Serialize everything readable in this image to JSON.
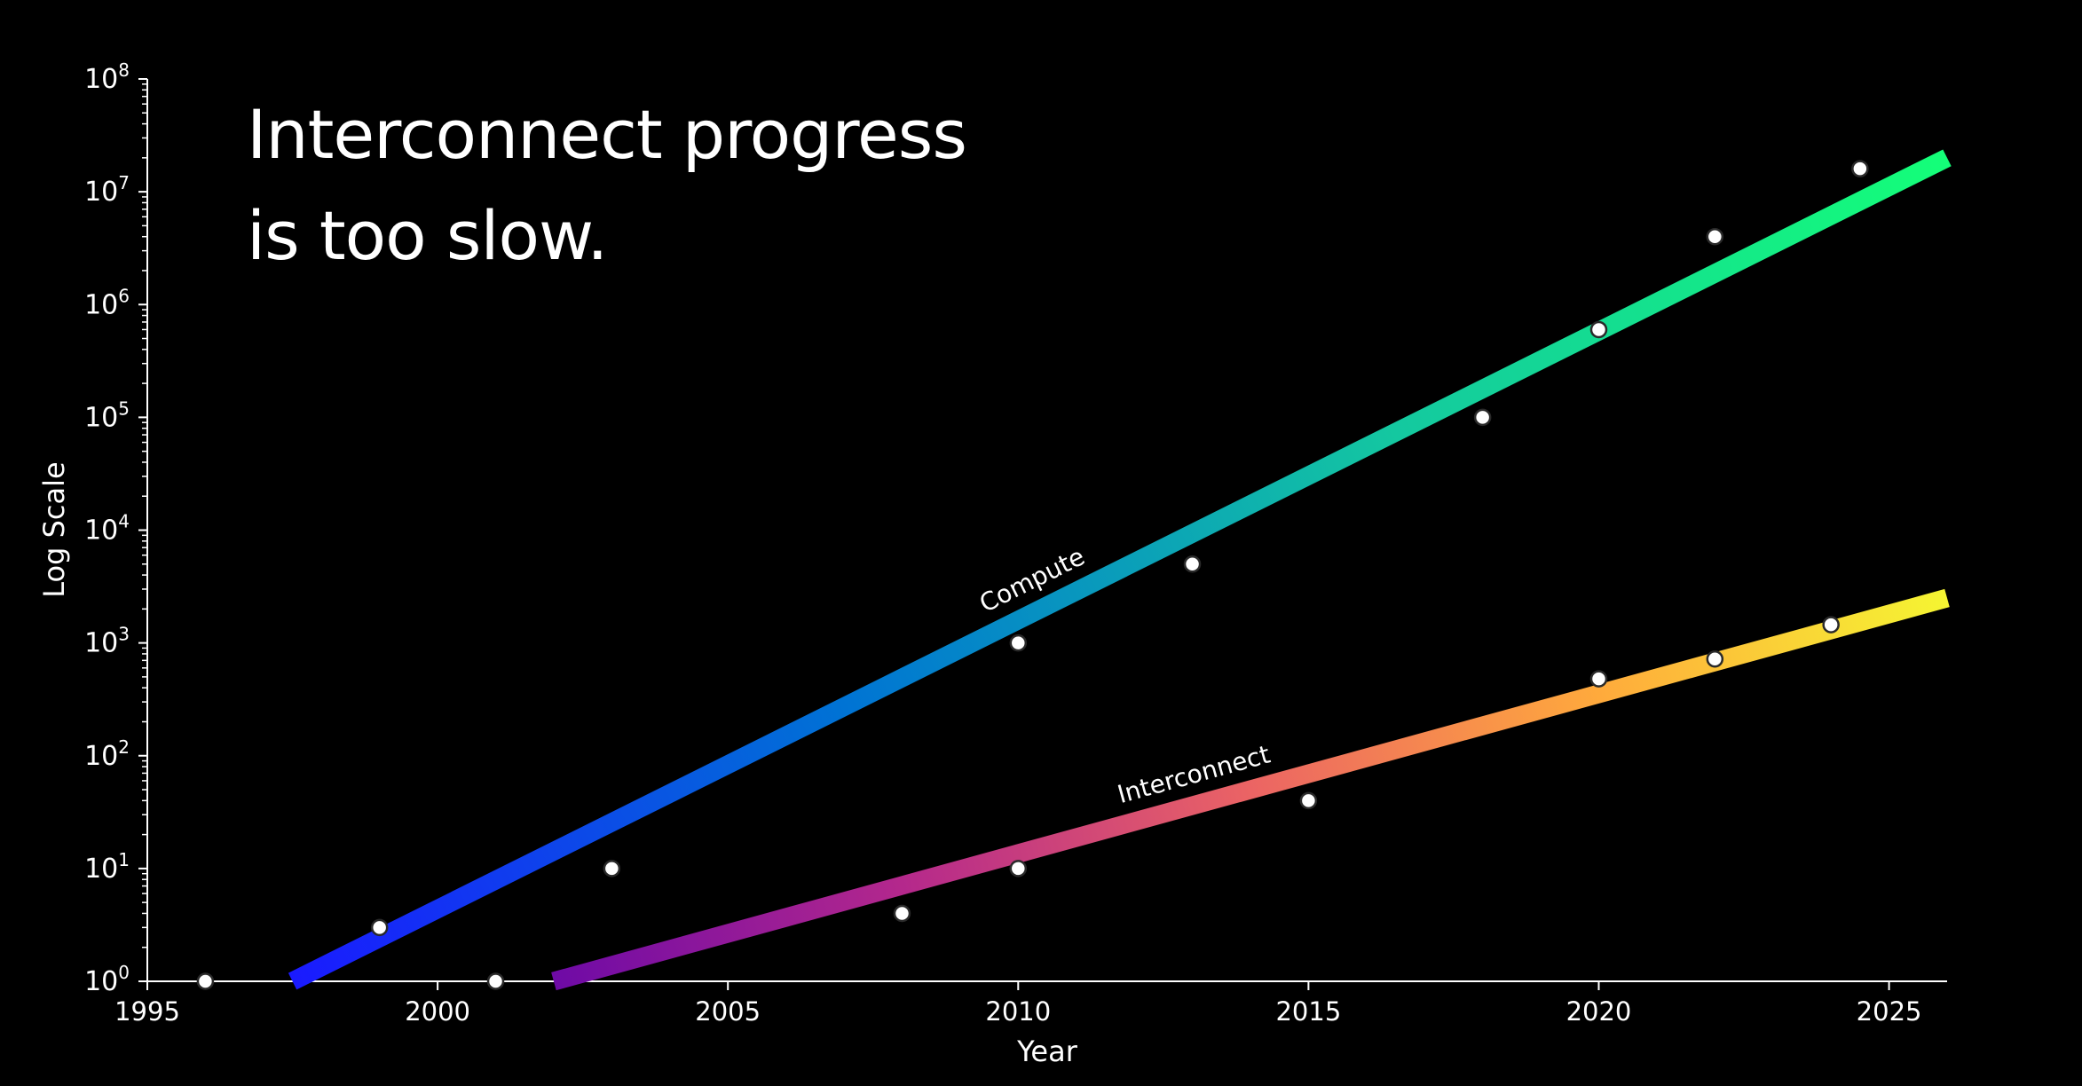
{
  "headline": {
    "line1": "Interconnect progress",
    "line2": "is too slow."
  },
  "chart_data": {
    "type": "line",
    "xlabel": "Year",
    "ylabel": "Log Scale",
    "xlim": [
      1995,
      2026
    ],
    "ylim": [
      1,
      100000000
    ],
    "yscale": "log",
    "x_ticks": [
      "1995",
      "2000",
      "2005",
      "2010",
      "2015",
      "2020",
      "2025"
    ],
    "y_ticks": [
      {
        "base": "10",
        "exp": "0"
      },
      {
        "base": "10",
        "exp": "1"
      },
      {
        "base": "10",
        "exp": "2"
      },
      {
        "base": "10",
        "exp": "3"
      },
      {
        "base": "10",
        "exp": "4"
      },
      {
        "base": "10",
        "exp": "5"
      },
      {
        "base": "10",
        "exp": "6"
      },
      {
        "base": "10",
        "exp": "7"
      },
      {
        "base": "10",
        "exp": "8"
      }
    ],
    "grid": false,
    "legend": "none",
    "series": [
      {
        "name": "Compute",
        "trend": {
          "x": [
            1997.5,
            2026
          ],
          "y": [
            1,
            20000000
          ]
        },
        "gradient": [
          "#1a1aff",
          "#0073d4",
          "#14c8a0",
          "#14ff78"
        ],
        "points": [
          {
            "x": 1996,
            "y": 1
          },
          {
            "x": 1999,
            "y": 3
          },
          {
            "x": 2001,
            "y": 1
          },
          {
            "x": 2003,
            "y": 10
          },
          {
            "x": 2010,
            "y": 1000
          },
          {
            "x": 2013,
            "y": 5000
          },
          {
            "x": 2018,
            "y": 100000
          },
          {
            "x": 2020,
            "y": 600000
          },
          {
            "x": 2022,
            "y": 4000000
          },
          {
            "x": 2024.5,
            "y": 16000000
          }
        ]
      },
      {
        "name": "Interconnect",
        "trend": {
          "x": [
            2002,
            2026
          ],
          "y": [
            1,
            2500
          ]
        },
        "gradient": [
          "#6e0aa6",
          "#b4288c",
          "#eb6464",
          "#ffaa3c",
          "#f5f532"
        ],
        "points": [
          {
            "x": 2008,
            "y": 4
          },
          {
            "x": 2010,
            "y": 10
          },
          {
            "x": 2015,
            "y": 40
          },
          {
            "x": 2020,
            "y": 480
          },
          {
            "x": 2022,
            "y": 720
          },
          {
            "x": 2024,
            "y": 1450
          }
        ]
      }
    ]
  }
}
